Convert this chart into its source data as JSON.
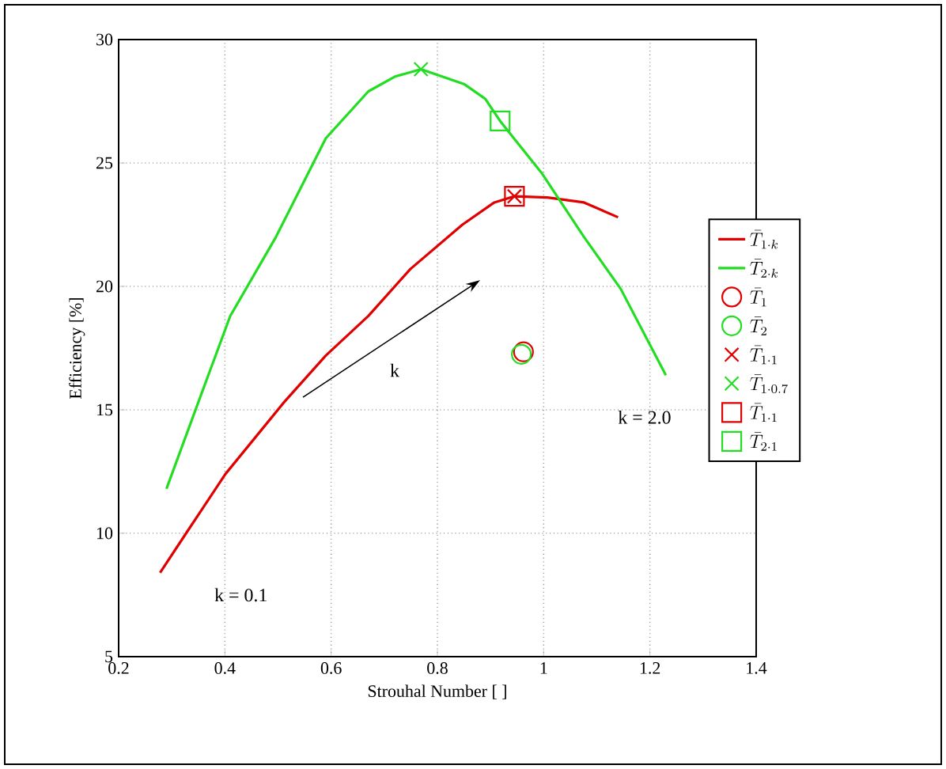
{
  "chart_data": {
    "type": "line",
    "xlabel": "Strouhal Number [ ]",
    "ylabel": "Efficiency [%]",
    "xlim": [
      0.2,
      1.4
    ],
    "ylim": [
      5,
      30
    ],
    "xticks": [
      0.2,
      0.4,
      0.6,
      0.8,
      1,
      1.2,
      1.4
    ],
    "yticks": [
      5,
      10,
      15,
      20,
      25,
      30
    ],
    "grid": true,
    "legend": "right",
    "series": [
      {
        "name": "\\bar{T}_{1\\cdot k}",
        "color": "#e00000",
        "x": [
          0.278,
          0.327,
          0.401,
          0.511,
          0.59,
          0.67,
          0.749,
          0.847,
          0.907,
          0.945,
          1.007,
          1.076,
          1.14
        ],
        "values": [
          8.4,
          10.0,
          12.4,
          15.3,
          17.2,
          18.8,
          20.7,
          22.5,
          23.4,
          23.65,
          23.6,
          23.4,
          22.8
        ]
      },
      {
        "name": "\\bar{T}_{2\\cdot k}",
        "color": "#22dd22",
        "x": [
          0.29,
          0.367,
          0.41,
          0.496,
          0.59,
          0.67,
          0.72,
          0.769,
          0.85,
          0.89,
          0.918,
          0.996,
          1.076,
          1.145,
          1.23
        ],
        "values": [
          11.8,
          16.3,
          18.8,
          22.0,
          26.0,
          27.9,
          28.5,
          28.8,
          28.2,
          27.6,
          26.7,
          24.6,
          22.0,
          19.9,
          16.4
        ]
      },
      {
        "name": "\\bar{T}_{1}",
        "type": "scatter",
        "marker": "circle",
        "color": "#e00000",
        "x": [
          0.962
        ],
        "values": [
          17.35
        ]
      },
      {
        "name": "\\bar{T}_{2}",
        "type": "scatter",
        "marker": "circle",
        "color": "#22dd22",
        "x": [
          0.958
        ],
        "values": [
          17.25
        ]
      },
      {
        "name": "\\bar{T}_{1\\cdot 1}",
        "type": "scatter",
        "marker": "cross",
        "color": "#e00000",
        "x": [
          0.945
        ],
        "values": [
          23.65
        ]
      },
      {
        "name": "\\bar{T}_{1\\cdot 0.7}",
        "type": "scatter",
        "marker": "cross",
        "color": "#22dd22",
        "x": [
          0.769
        ],
        "values": [
          28.8
        ]
      },
      {
        "name": "\\bar{T}_{1\\cdot 1}",
        "type": "scatter",
        "marker": "square",
        "color": "#e00000",
        "x": [
          0.945
        ],
        "values": [
          23.65
        ]
      },
      {
        "name": "\\bar{T}_{2\\cdot 1}",
        "type": "scatter",
        "marker": "square",
        "color": "#22dd22",
        "x": [
          0.918
        ],
        "values": [
          26.7
        ]
      }
    ],
    "annotations": [
      "k",
      "k = 0.1",
      "k = 2.0"
    ]
  }
}
